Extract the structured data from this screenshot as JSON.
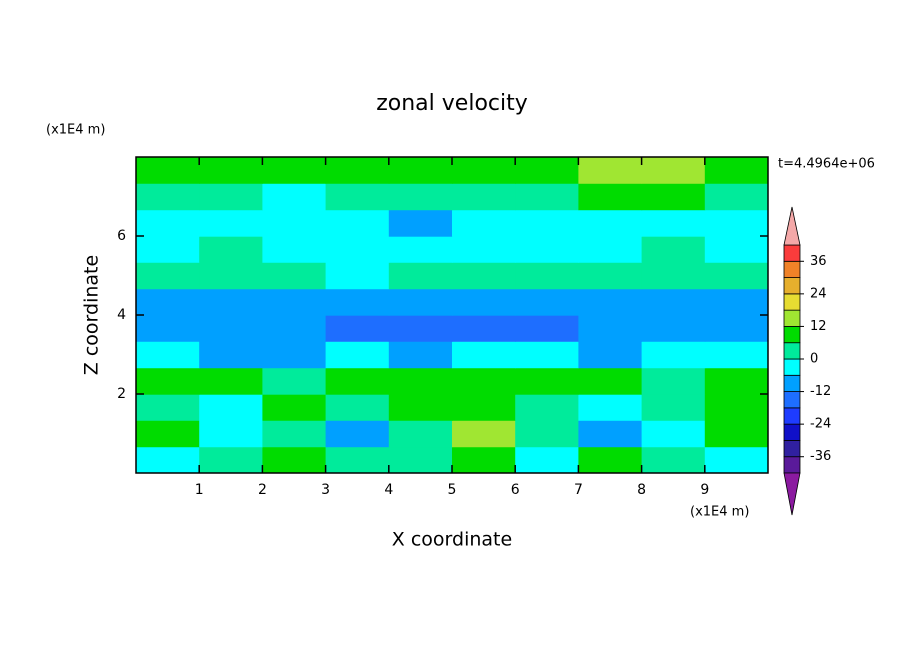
{
  "chart_data": {
    "type": "contour",
    "title": "zonal velocity",
    "subtitle": "t=4.4964e+06",
    "x_label": "X coordinate",
    "y_label": "Z coordinate",
    "x_unit": "(x1E4 m)",
    "y_unit": "(x1E4 m)",
    "xlim": [
      0,
      10
    ],
    "ylim": [
      0,
      8
    ],
    "xticks": [
      1,
      2,
      3,
      4,
      5,
      6,
      7,
      8,
      9
    ],
    "yticks": [
      2,
      4,
      6
    ],
    "x": [
      0.5,
      1.5,
      2.5,
      3.5,
      4.5,
      5.5,
      6.5,
      7.5,
      8.5,
      9.5
    ],
    "y": [
      0.33,
      1,
      1.67,
      2.33,
      3,
      3.67,
      4.33,
      5,
      5.67,
      6.33,
      7,
      7.67
    ],
    "z": [
      [
        -3,
        3,
        8,
        3,
        3,
        8,
        -3,
        8,
        3,
        -3
      ],
      [
        8,
        -3,
        3,
        -8,
        3,
        14,
        3,
        -8,
        -3,
        8
      ],
      [
        3,
        -3,
        8,
        3,
        8,
        8,
        3,
        -3,
        3,
        8
      ],
      [
        8,
        7,
        3,
        8,
        8,
        8,
        7,
        8,
        3,
        8
      ],
      [
        -3,
        -8,
        -8,
        -3,
        -8,
        -3,
        -3,
        -8,
        -3,
        -3
      ],
      [
        -9,
        -8,
        -9,
        -13,
        -13,
        -13,
        -13,
        -8,
        -9,
        -8
      ],
      [
        -8,
        -8,
        -9,
        -8,
        -8,
        -8,
        -9,
        -8,
        -8,
        -8
      ],
      [
        3,
        3,
        2,
        -3,
        3,
        3,
        3,
        2,
        3,
        3
      ],
      [
        -2,
        3,
        -3,
        -3,
        -2,
        -3,
        -3,
        -3,
        2,
        -3
      ],
      [
        -3,
        -3,
        -2,
        -3,
        -8,
        -3,
        -3,
        -2,
        -3,
        -3
      ],
      [
        3,
        2,
        -3,
        3,
        3,
        2,
        3,
        8,
        7,
        3
      ],
      [
        8,
        8,
        9,
        8,
        7,
        8,
        9,
        13,
        14,
        9
      ]
    ],
    "levels": [
      -42,
      -36,
      -30,
      -24,
      -18,
      -12,
      -6,
      0,
      6,
      12,
      18,
      24,
      30,
      36,
      42
    ],
    "colors": [
      "#5a1a9a",
      "#3020a0",
      "#1010c8",
      "#1e3cff",
      "#1e6eff",
      "#00a0ff",
      "#00ffff",
      "#00eb9b",
      "#00dc00",
      "#a0e632",
      "#e6dc32",
      "#e6af2d",
      "#f08228",
      "#fa3c3c"
    ],
    "under_color": "#8b1aa0",
    "over_color": "#f4a8a8",
    "colorbar_ticks": [
      -36,
      -24,
      -12,
      0,
      12,
      24,
      36
    ]
  }
}
